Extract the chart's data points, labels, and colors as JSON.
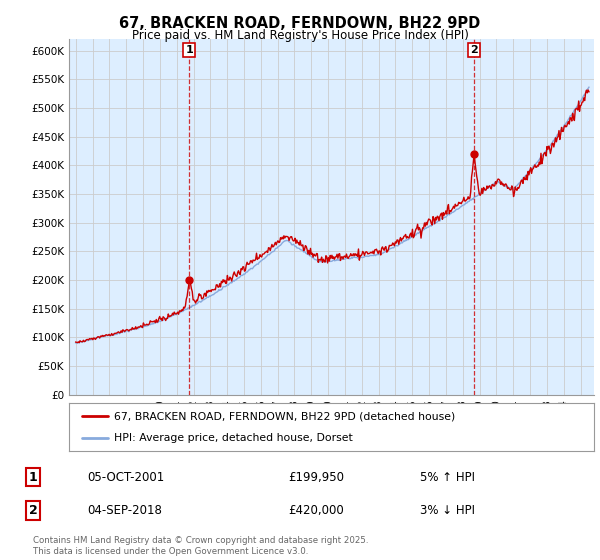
{
  "title": "67, BRACKEN ROAD, FERNDOWN, BH22 9PD",
  "subtitle": "Price paid vs. HM Land Registry's House Price Index (HPI)",
  "ylim": [
    0,
    620000
  ],
  "yticks": [
    0,
    50000,
    100000,
    150000,
    200000,
    250000,
    300000,
    350000,
    400000,
    450000,
    500000,
    550000,
    600000
  ],
  "ytick_labels": [
    "£0",
    "£50K",
    "£100K",
    "£150K",
    "£200K",
    "£250K",
    "£300K",
    "£350K",
    "£400K",
    "£450K",
    "£500K",
    "£550K",
    "£600K"
  ],
  "legend_label_red": "67, BRACKEN ROAD, FERNDOWN, BH22 9PD (detached house)",
  "legend_label_blue": "HPI: Average price, detached house, Dorset",
  "red_color": "#cc0000",
  "blue_color": "#88aadd",
  "fill_color": "#ddeeff",
  "marker1_year": 2001.75,
  "marker1_price": 199950,
  "marker1_label": "1",
  "marker1_date": "05-OCT-2001",
  "marker1_price_str": "£199,950",
  "marker1_pct": "5% ↑ HPI",
  "marker2_year": 2018.67,
  "marker2_price": 420000,
  "marker2_label": "2",
  "marker2_date": "04-SEP-2018",
  "marker2_price_str": "£420,000",
  "marker2_pct": "3% ↓ HPI",
  "footer": "Contains HM Land Registry data © Crown copyright and database right 2025.\nThis data is licensed under the Open Government Licence v3.0.",
  "background_color": "#ffffff",
  "grid_color": "#cccccc"
}
